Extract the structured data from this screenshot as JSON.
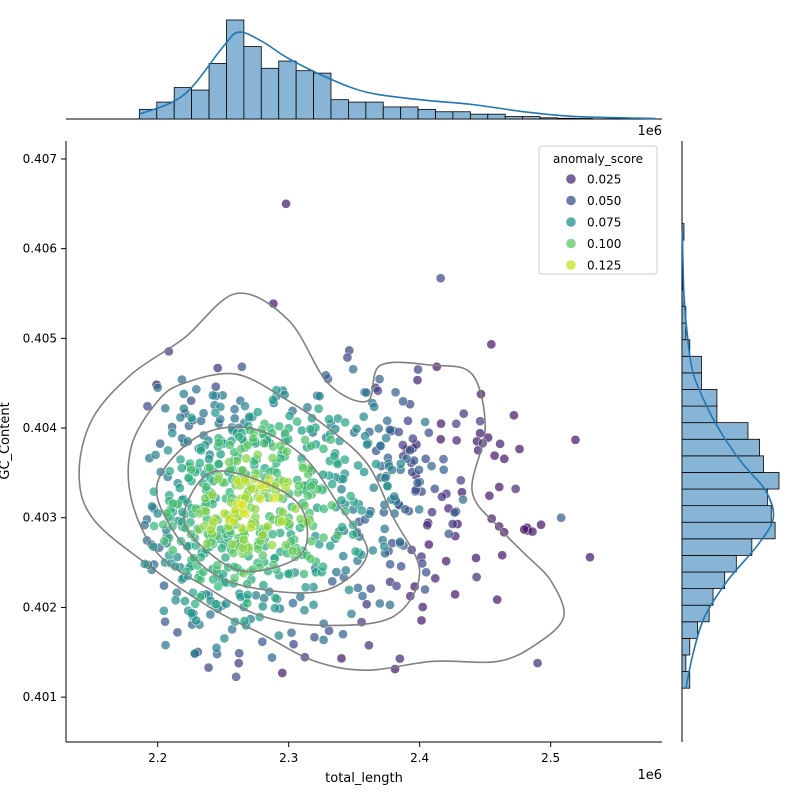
{
  "chart_data": {
    "type": "scatter",
    "title": "",
    "xlabel": "total_length",
    "ylabel": "GC_Content",
    "x_offset_label": "1e6",
    "xlim": [
      2.13,
      2.585
    ],
    "ylim": [
      0.4005,
      0.4072
    ],
    "x_ticks": [
      "2.2",
      "2.3",
      "2.4",
      "2.5"
    ],
    "y_ticks": [
      "0.401",
      "0.402",
      "0.403",
      "0.404",
      "0.405",
      "0.406",
      "0.407"
    ],
    "legend": {
      "title": "anomaly_score",
      "placement": "top-right",
      "entries": [
        {
          "label": "0.025",
          "value": 0.025,
          "color": "#472d7b"
        },
        {
          "label": "0.050",
          "value": 0.05,
          "color": "#3b528b"
        },
        {
          "label": "0.075",
          "value": 0.075,
          "color": "#21918c"
        },
        {
          "label": "0.100",
          "value": 0.1,
          "color": "#5ec962"
        },
        {
          "label": "0.125",
          "value": 0.125,
          "color": "#c8e020"
        }
      ]
    },
    "colormap": "viridis",
    "score_range": [
      0.0,
      0.14
    ],
    "points": {
      "description": "approx. 900 scattered points, total_length in units of 1e6, GC_Content, anomaly_score",
      "highlighted": [
        {
          "x": 2.298,
          "y": 0.4065,
          "score": 0.01
        },
        {
          "x": 2.416,
          "y": 0.40567,
          "score": 0.03
        },
        {
          "x": 2.53,
          "y": 0.40256,
          "score": 0.01
        },
        {
          "x": 2.508,
          "y": 0.403,
          "score": 0.04
        },
        {
          "x": 2.49,
          "y": 0.40138,
          "score": 0.02
        },
        {
          "x": 2.2,
          "y": 0.40445,
          "score": 0.05
        }
      ],
      "cluster_center": {
        "x": 2.275,
        "y": 0.4031
      },
      "spread": {
        "x": 0.05,
        "y": 0.0007
      },
      "count": 900
    },
    "kde_contours": {
      "color": "#808080",
      "levels": [
        [
          [
            2.22,
            0.405
          ],
          [
            2.26,
            0.4055
          ],
          [
            2.3,
            0.4052
          ],
          [
            2.33,
            0.4045
          ],
          [
            2.36,
            0.4043
          ],
          [
            2.37,
            0.4047
          ],
          [
            2.41,
            0.4047
          ],
          [
            2.44,
            0.4046
          ],
          [
            2.45,
            0.404
          ],
          [
            2.44,
            0.4033
          ],
          [
            2.46,
            0.4029
          ],
          [
            2.48,
            0.4026
          ],
          [
            2.5,
            0.4023
          ],
          [
            2.51,
            0.4019
          ],
          [
            2.49,
            0.4016
          ],
          [
            2.46,
            0.4014
          ],
          [
            2.41,
            0.4014
          ],
          [
            2.36,
            0.4013
          ],
          [
            2.32,
            0.4014
          ],
          [
            2.28,
            0.4017
          ],
          [
            2.24,
            0.402
          ],
          [
            2.19,
            0.4025
          ],
          [
            2.15,
            0.403
          ],
          [
            2.14,
            0.4035
          ],
          [
            2.15,
            0.4041
          ],
          [
            2.18,
            0.4046
          ]
        ],
        [
          [
            2.22,
            0.4045
          ],
          [
            2.26,
            0.4046
          ],
          [
            2.3,
            0.4043
          ],
          [
            2.33,
            0.404
          ],
          [
            2.36,
            0.4036
          ],
          [
            2.38,
            0.403
          ],
          [
            2.4,
            0.4024
          ],
          [
            2.38,
            0.4019
          ],
          [
            2.33,
            0.4018
          ],
          [
            2.28,
            0.4019
          ],
          [
            2.24,
            0.4022
          ],
          [
            2.2,
            0.4026
          ],
          [
            2.18,
            0.4032
          ],
          [
            2.18,
            0.4038
          ],
          [
            2.2,
            0.4043
          ]
        ],
        [
          [
            2.23,
            0.4039
          ],
          [
            2.27,
            0.404
          ],
          [
            2.31,
            0.4037
          ],
          [
            2.34,
            0.4031
          ],
          [
            2.36,
            0.4026
          ],
          [
            2.33,
            0.4022
          ],
          [
            2.28,
            0.4022
          ],
          [
            2.24,
            0.4024
          ],
          [
            2.21,
            0.4029
          ],
          [
            2.2,
            0.4034
          ]
        ],
        [
          [
            2.24,
            0.4035
          ],
          [
            2.28,
            0.4034
          ],
          [
            2.31,
            0.4031
          ],
          [
            2.31,
            0.4026
          ],
          [
            2.27,
            0.4024
          ],
          [
            2.24,
            0.4026
          ],
          [
            2.22,
            0.403
          ]
        ]
      ]
    },
    "marginal_x": {
      "type": "histogram",
      "bins": {
        "start": 2.186,
        "width": 0.0133
      },
      "counts": [
        4,
        7,
        13,
        12,
        23,
        41,
        30,
        21,
        24,
        20,
        19,
        8,
        7,
        7,
        5,
        5,
        4,
        3,
        3,
        2,
        2,
        1,
        1,
        0.5,
        0.3,
        0.2
      ],
      "kde": [
        [
          2.186,
          2
        ],
        [
          2.22,
          10
        ],
        [
          2.25,
          30
        ],
        [
          2.262,
          36
        ],
        [
          2.28,
          32
        ],
        [
          2.3,
          25
        ],
        [
          2.33,
          17
        ],
        [
          2.36,
          11
        ],
        [
          2.4,
          8
        ],
        [
          2.44,
          6
        ],
        [
          2.48,
          3
        ],
        [
          2.52,
          1
        ],
        [
          2.58,
          0.2
        ]
      ]
    },
    "marginal_y": {
      "type": "histogram",
      "bins": {
        "start": 0.4011,
        "width": 0.000185
      },
      "counts": [
        2,
        1,
        2,
        4,
        7,
        8,
        11,
        14,
        18,
        24,
        23,
        22,
        25,
        21,
        20,
        17,
        9,
        9,
        5,
        5,
        2,
        1,
        1,
        0.5,
        0.2,
        0.1,
        0.1,
        0.5
      ],
      "kde": [
        [
          0.4011,
          1
        ],
        [
          0.4015,
          3
        ],
        [
          0.4019,
          6
        ],
        [
          0.4023,
          12
        ],
        [
          0.4027,
          20
        ],
        [
          0.403,
          24
        ],
        [
          0.4033,
          22
        ],
        [
          0.4036,
          16
        ],
        [
          0.4039,
          11
        ],
        [
          0.4042,
          7
        ],
        [
          0.4046,
          3
        ],
        [
          0.405,
          1.5
        ],
        [
          0.4055,
          0.5
        ],
        [
          0.4062,
          0.1
        ]
      ]
    }
  }
}
